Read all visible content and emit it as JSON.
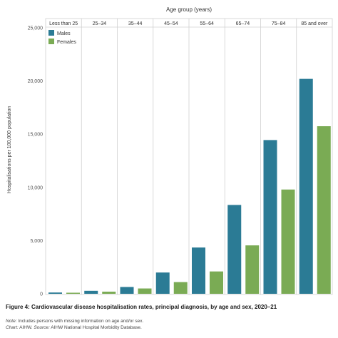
{
  "chart_data": {
    "type": "bar",
    "title": "Age group (years)",
    "xlabel": "Age group (years)",
    "ylabel": "Hospitalisations per 100,000 population",
    "categories": [
      "Less than 25",
      "25–34",
      "35–44",
      "45–54",
      "55–64",
      "65–74",
      "75–84",
      "85 and over"
    ],
    "series": [
      {
        "name": "Males",
        "color": "#2b7b95",
        "values": [
          120,
          280,
          640,
          2000,
          4350,
          8350,
          14450,
          20200
        ]
      },
      {
        "name": "Females",
        "color": "#7aab54",
        "values": [
          100,
          200,
          500,
          1100,
          2100,
          4550,
          9800,
          15750
        ]
      }
    ],
    "ylim": [
      0,
      25000
    ],
    "yticks": [
      0,
      5000,
      10000,
      15000,
      20000,
      25000
    ],
    "ytick_labels": [
      "0",
      "5,000",
      "10,000",
      "15,000",
      "20,000",
      "25,000"
    ],
    "legend_position": "top-left",
    "grid": false
  },
  "caption": {
    "figure_title": "Figure 4: Cardiovascular disease hospitalisation rates, principal diagnosis, by age and sex, 2020–21",
    "note_label": "Note:",
    "note_text": " Includes persons with missing information on age and/or sex.",
    "chart_label": "Chart:",
    "chart_text": " AIHW. ",
    "source_label": "Source:",
    "source_text": " AIHW National Hospital Morbidity Database."
  }
}
